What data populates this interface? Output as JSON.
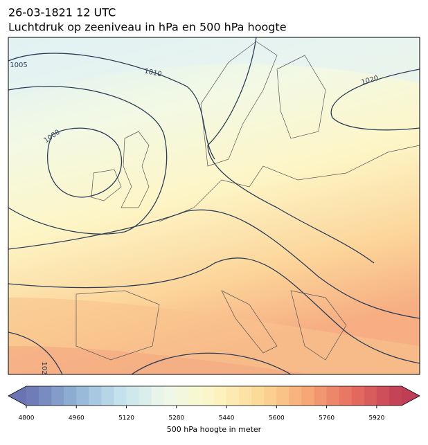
{
  "header": {
    "title": "26-03-1821 12 UTC",
    "subtitle": "Luchtdruk op zeeniveau in hPa en 500 hPa hoogte"
  },
  "contour_labels": [
    "1005",
    "1010",
    "1000",
    "1020",
    "102"
  ],
  "colorbar": {
    "label": "500 hPa hoogte in meter",
    "range": [
      4800,
      6000
    ],
    "step": 40,
    "ticks": [
      4800,
      4960,
      5120,
      5280,
      5440,
      5600,
      5760,
      5920
    ],
    "colormap": [
      "#6a74b4",
      "#8fb0d4",
      "#c4e2ee",
      "#eef8e8",
      "#fdf6c4",
      "#fcd996",
      "#f6a775",
      "#e46b5e",
      "#bf3d55"
    ]
  }
}
